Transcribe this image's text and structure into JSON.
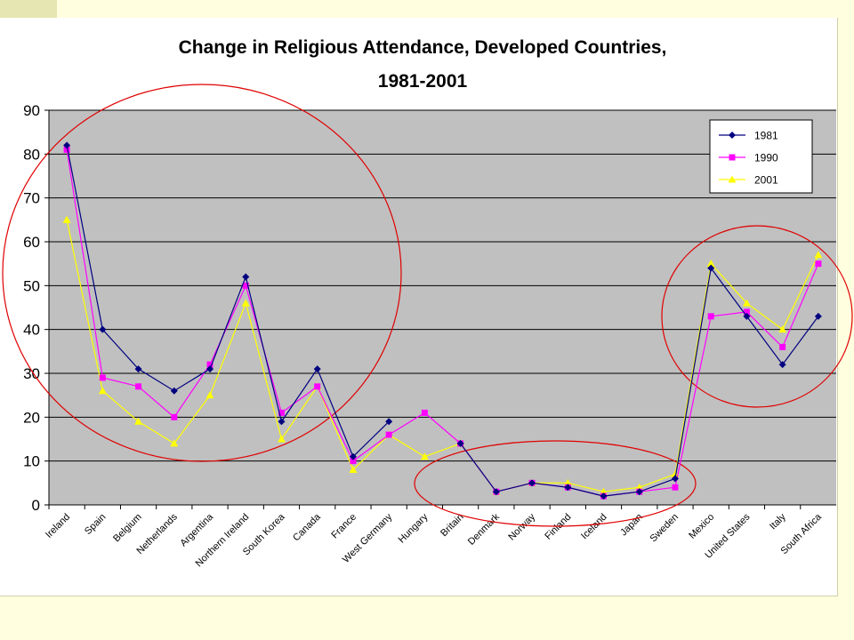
{
  "chart_data": {
    "type": "line",
    "title": "Change in Religious Attendance, Developed Countries,",
    "subtitle": "1981-2001",
    "xlabel": "",
    "ylabel": "",
    "ylim": [
      0,
      90
    ],
    "yticks": [
      0,
      10,
      20,
      30,
      40,
      50,
      60,
      70,
      80,
      90
    ],
    "grid": true,
    "legend_position": "top-right",
    "categories": [
      "Ireland",
      "Spain",
      "Belgium",
      "Netherlands",
      "Argentina",
      "Northern Ireland",
      "South Korea",
      "Canada",
      "France",
      "West Germany",
      "Hungary",
      "Britain",
      "Denmark",
      "Norway",
      "Finland",
      "Iceland",
      "Japan",
      "Sweden",
      "Mexico",
      "United States",
      "Italy",
      "South Africa"
    ],
    "series": [
      {
        "name": "1981",
        "color": "#000080",
        "marker": "diamond",
        "values": [
          82,
          40,
          31,
          26,
          31,
          52,
          19,
          31,
          11,
          19,
          null,
          14,
          3,
          5,
          4,
          2,
          3,
          6,
          54,
          43,
          32,
          43
        ]
      },
      {
        "name": "1990",
        "color": "#ff00ff",
        "marker": "square",
        "values": [
          81,
          29,
          27,
          20,
          32,
          50,
          21,
          27,
          10,
          16,
          21,
          14,
          3,
          5,
          4,
          2,
          3,
          4,
          43,
          44,
          36,
          55
        ]
      },
      {
        "name": "2001",
        "color": "#ffff00",
        "marker": "triangle",
        "values": [
          65,
          26,
          19,
          14,
          25,
          46,
          15,
          27,
          8,
          16,
          11,
          14,
          3,
          5,
          5,
          3,
          4,
          7,
          55,
          46,
          40,
          57
        ]
      }
    ],
    "colors": {
      "plot_background": "#c0c0c0",
      "gridline": "#000000",
      "annotation_circle": "#e00000",
      "page_background": "#ffffe0"
    }
  }
}
